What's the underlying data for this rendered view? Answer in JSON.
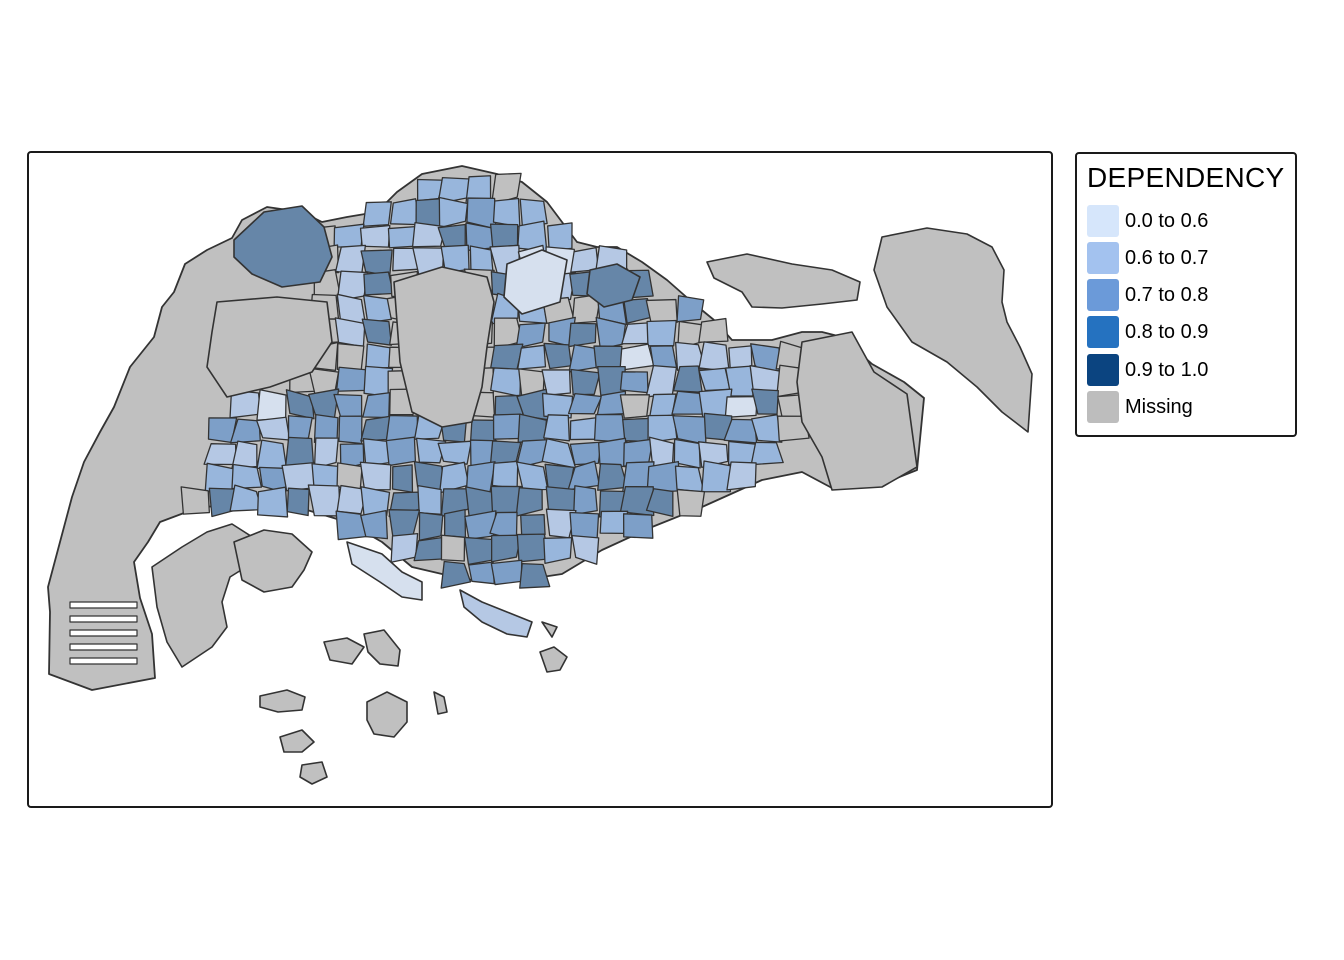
{
  "legend": {
    "title": "DEPENDENCY",
    "items": [
      {
        "label": "0.0 to 0.6",
        "color": "#d6e6fb"
      },
      {
        "label": "0.6 to 0.7",
        "color": "#a3c2ef"
      },
      {
        "label": "0.7 to 0.8",
        "color": "#6b9ad9"
      },
      {
        "label": "0.8 to 0.9",
        "color": "#2572c0"
      },
      {
        "label": "0.9 to 1.0",
        "color": "#0b4480"
      },
      {
        "label": "Missing",
        "color": "#bdbdbd"
      }
    ]
  },
  "map": {
    "outline_color": "#333333",
    "missing_color": "#c0c0c0",
    "class_fills": [
      "#d6e0ee",
      "#b5c8e4",
      "#98b6dc",
      "#7d9fc8",
      "#6686a8"
    ]
  }
}
